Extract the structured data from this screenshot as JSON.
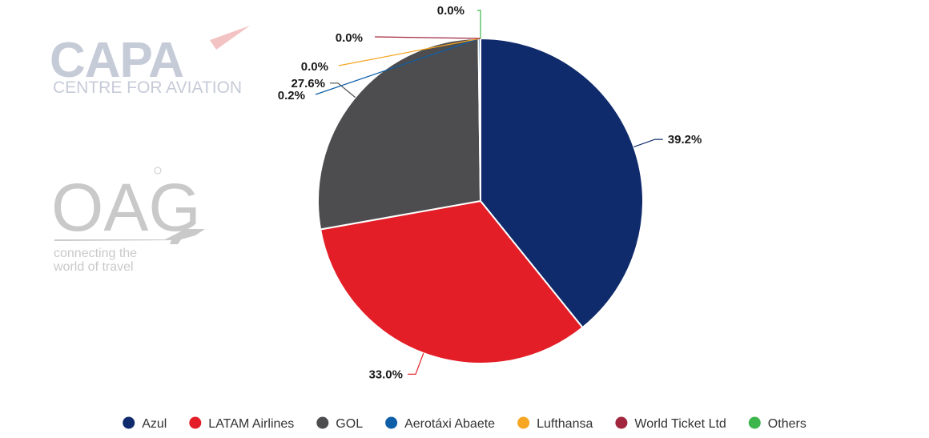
{
  "watermark": {
    "capa_logo": "CAPA",
    "capa_subtitle": "CENTRE FOR AVIATION",
    "oag_logo": "OAG",
    "oag_tagline_1": "connecting the",
    "oag_tagline_2": "world of travel"
  },
  "chart_data": {
    "type": "pie",
    "title": "",
    "series": [
      {
        "name": "Azul",
        "value": 39.2,
        "label": "39.2%",
        "color": "#0f2b6b"
      },
      {
        "name": "LATAM Airlines",
        "value": 33.0,
        "label": "33.0%",
        "color": "#e31e27"
      },
      {
        "name": "GOL",
        "value": 27.6,
        "label": "27.6%",
        "color": "#4d4d4f"
      },
      {
        "name": "Aerotáxi Abaete",
        "value": 0.2,
        "label": "0.2%",
        "color": "#0f5fa8"
      },
      {
        "name": "Lufthansa",
        "value": 0.0,
        "label": "0.0%",
        "color": "#f6a623"
      },
      {
        "name": "World Ticket Ltd",
        "value": 0.0,
        "label": "0.0%",
        "color": "#a1263e"
      },
      {
        "name": "Others",
        "value": 0.0,
        "label": "0.0%",
        "color": "#3cb54a"
      }
    ],
    "legend_position": "bottom",
    "start_angle": "12 o'clock",
    "direction": "clockwise"
  }
}
